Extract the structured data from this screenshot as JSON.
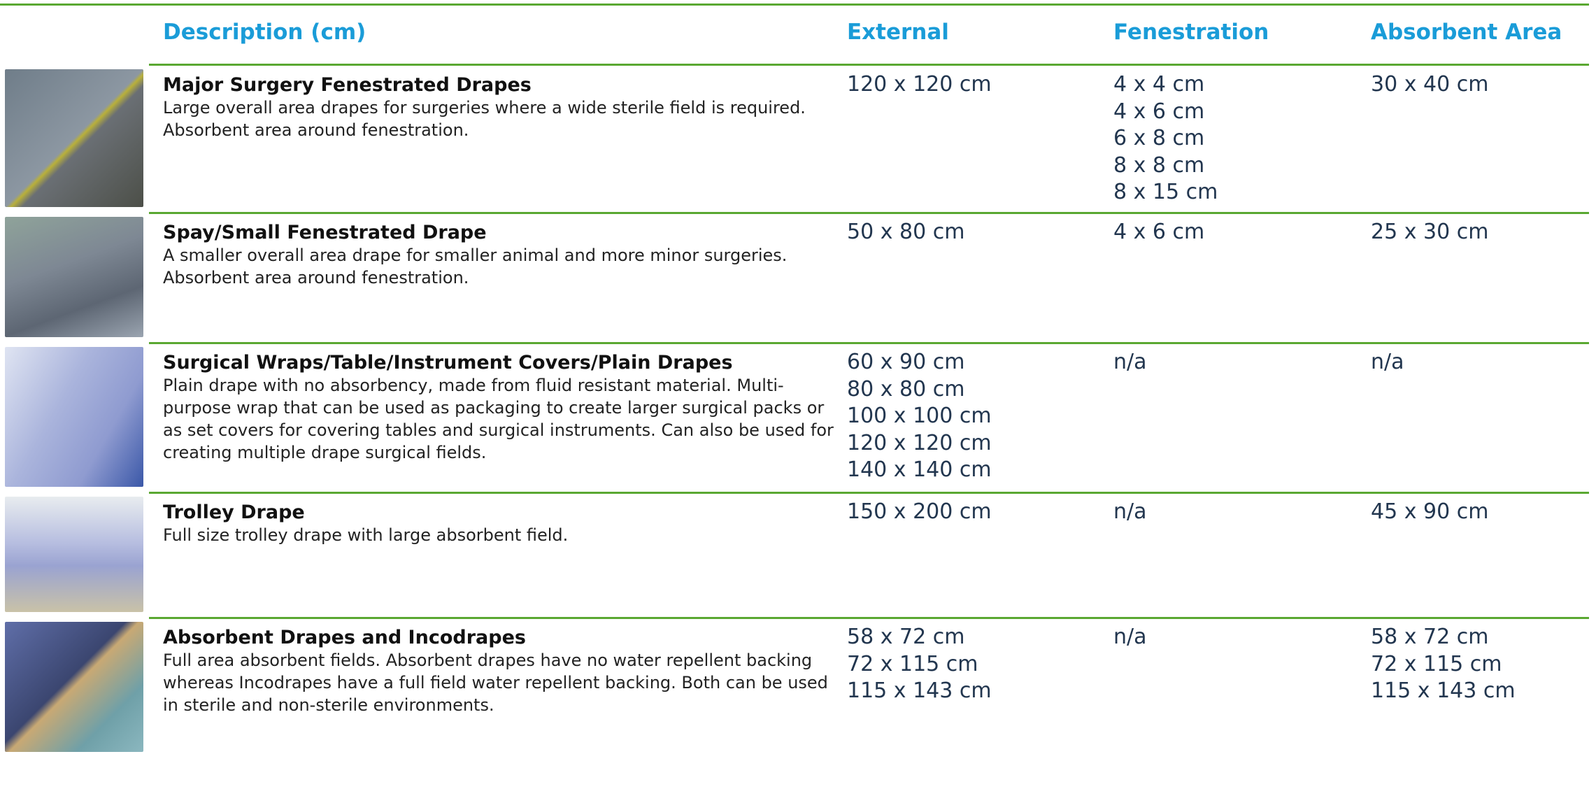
{
  "header": [
    "Description (cm)",
    "External",
    "Fenestration",
    "Absorbent Area"
  ],
  "rows": [
    {
      "title": "Major Surgery Fenestrated Drapes",
      "description": "Large overall area drapes for surgeries where a wide sterile field is required.  Absorbent area around fenestration.",
      "external": [
        "120 x 120 cm"
      ],
      "fenestration": [
        "4 x 4 cm",
        "4 x 6 cm",
        "6 x 8 cm",
        "8 x 8 cm",
        "8 x 15 cm"
      ],
      "absorbent": [
        "30 x 40 cm"
      ]
    },
    {
      "title": "Spay/Small Fenestrated Drape",
      "description": "A smaller overall area drape for smaller animal and more minor surgeries. Absorbent area around fenestration.",
      "external": [
        "50 x 80 cm"
      ],
      "fenestration": [
        "4 x 6 cm"
      ],
      "absorbent": [
        "25 x 30 cm"
      ]
    },
    {
      "title": "Surgical Wraps/Table/Instrument Covers/Plain Drapes",
      "description": "Plain drape with no absorbency, made from fluid resistant material. Multi-purpose wrap that can be used as packaging to create larger surgical packs or as set covers for covering tables and surgical instruments.  Can also be used for creating multiple drape surgical fields.",
      "external": [
        "60 x 90 cm",
        "80 x 80 cm",
        "100 x 100 cm",
        "120 x 120 cm",
        "140 x 140 cm"
      ],
      "fenestration": [
        "n/a"
      ],
      "absorbent": [
        "n/a"
      ]
    },
    {
      "title": "Trolley Drape",
      "description": "Full size trolley drape with large absorbent field.",
      "external": [
        "150 x 200 cm"
      ],
      "fenestration": [
        "n/a"
      ],
      "absorbent": [
        "45 x 90 cm"
      ]
    },
    {
      "title": "Absorbent Drapes and Incodrapes",
      "description": "Full area absorbent fields.  Absorbent drapes have no water repellent backing whereas Incodrapes have a full field water repellent backing.  Both can be used in sterile and non-sterile environments.",
      "external": [
        "58 x 72 cm",
        "72 x 115 cm",
        "115 x 143 cm"
      ],
      "fenestration": [
        "n/a"
      ],
      "absorbent": [
        "58 x 72 cm",
        "72 x 115 cm",
        "115 x 143 cm"
      ]
    }
  ]
}
